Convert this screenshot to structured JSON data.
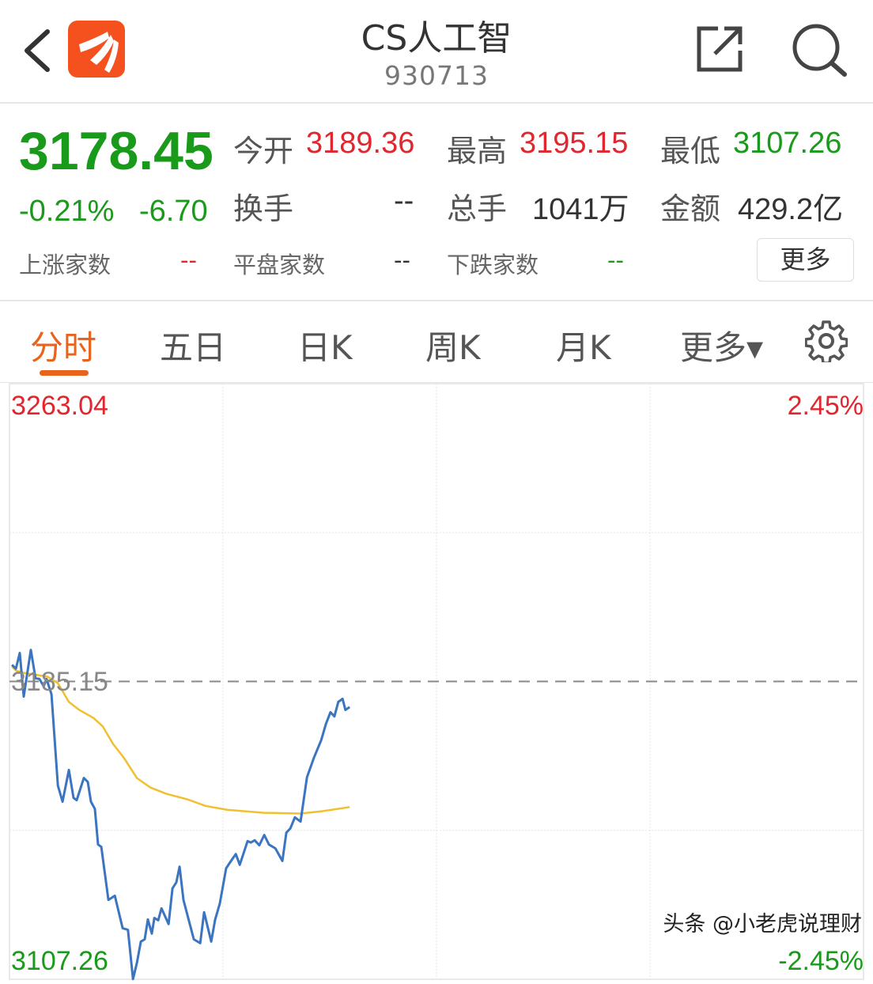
{
  "header": {
    "title": "CS人工智",
    "code": "930713",
    "back_icon": "chevron-left-icon",
    "logo": "app-logo-orange",
    "share_icon": "share-icon",
    "search_icon": "search-icon",
    "logo_color": "#f4511e"
  },
  "quote": {
    "price": "3178.45",
    "change_pct": "-0.21%",
    "change": "-6.70",
    "open_label": "今开",
    "open": "3189.36",
    "high_label": "最高",
    "high": "3195.15",
    "low_label": "最低",
    "low": "3107.26",
    "turnover_label": "换手",
    "turnover": "--",
    "volume_label": "总手",
    "volume": "1041万",
    "amount_label": "金额",
    "amount": "429.2亿",
    "up_label": "上涨家数",
    "up": "--",
    "flat_label": "平盘家数",
    "flat": "--",
    "down_label": "下跌家数",
    "down": "--",
    "more_label": "更多"
  },
  "tabs": [
    {
      "label": "分时",
      "active": true
    },
    {
      "label": "五日"
    },
    {
      "label": "日K"
    },
    {
      "label": "周K"
    },
    {
      "label": "月K"
    },
    {
      "label": "更多▾"
    }
  ],
  "settings_icon": "gear-icon",
  "colors": {
    "up": "#e0262e",
    "down": "#1a9a1a",
    "price_line": "#3b74c0",
    "avg_line": "#f0c030",
    "accent": "#e8631c"
  },
  "watermark": "头条 @小老虎说理财",
  "chart_data": {
    "type": "line",
    "y_top_label": "3263.04",
    "y_mid_label": "3185.15",
    "y_bottom_label": "3107.26",
    "pct_top_label": "2.45%",
    "pct_bottom_label": "-2.45%",
    "ylim": [
      3107.26,
      3263.04
    ],
    "prev_close": 3185.15,
    "xlim_minutes": [
      0,
      240
    ],
    "series": [
      {
        "key": "price",
        "points": [
          [
            0.7,
            3189.5
          ],
          [
            1.8,
            3188.5
          ],
          [
            2.9,
            3192.6
          ],
          [
            4,
            3181.2
          ],
          [
            6,
            3193.4
          ],
          [
            7.3,
            3186.0
          ],
          [
            8.4,
            3185.8
          ],
          [
            9.6,
            3183.9
          ],
          [
            10.4,
            3185.8
          ],
          [
            11.8,
            3181.8
          ],
          [
            13.6,
            3157.9
          ],
          [
            14.9,
            3153.7
          ],
          [
            16.7,
            3162.0
          ],
          [
            18,
            3154.7
          ],
          [
            18.9,
            3154.1
          ],
          [
            20.9,
            3159.9
          ],
          [
            22,
            3158.9
          ],
          [
            22.9,
            3153.7
          ],
          [
            24,
            3151.8
          ],
          [
            24.9,
            3142.5
          ],
          [
            25.8,
            3141.9
          ],
          [
            27.8,
            3128.0
          ],
          [
            29.6,
            3129.1
          ],
          [
            31.8,
            3120.6
          ],
          [
            33.3,
            3120.2
          ],
          [
            34.7,
            3107.3
          ],
          [
            35.8,
            3111.5
          ],
          [
            36.9,
            3117.1
          ],
          [
            38,
            3117.7
          ],
          [
            38.9,
            3122.9
          ],
          [
            40,
            3119.2
          ],
          [
            40.7,
            3123.3
          ],
          [
            41.8,
            3122.7
          ],
          [
            42.7,
            3125.8
          ],
          [
            44.7,
            3121.7
          ],
          [
            45.8,
            3131.0
          ],
          [
            46.9,
            3132.6
          ],
          [
            47.8,
            3136.7
          ],
          [
            48.9,
            3128.0
          ],
          [
            51.8,
            3117.7
          ],
          [
            53.6,
            3116.7
          ],
          [
            54.7,
            3124.8
          ],
          [
            56.7,
            3117.1
          ],
          [
            57.8,
            3122.9
          ],
          [
            59.1,
            3127.0
          ],
          [
            60.9,
            3136.3
          ],
          [
            62.4,
            3138.4
          ],
          [
            63.6,
            3140.0
          ],
          [
            64.7,
            3137.2
          ],
          [
            66.9,
            3143.4
          ],
          [
            67.8,
            3143.0
          ],
          [
            68.9,
            3143.6
          ],
          [
            70.2,
            3142.3
          ],
          [
            71.6,
            3145.0
          ],
          [
            72.9,
            3142.5
          ],
          [
            74.7,
            3141.5
          ],
          [
            76.7,
            3138.2
          ],
          [
            77.8,
            3145.6
          ],
          [
            78.9,
            3146.7
          ],
          [
            80.2,
            3149.6
          ],
          [
            81.8,
            3148.5
          ],
          [
            83.6,
            3160.1
          ],
          [
            85.6,
            3165.3
          ],
          [
            87.6,
            3169.8
          ],
          [
            88.9,
            3174.0
          ],
          [
            90.2,
            3177.1
          ],
          [
            91.3,
            3176.0
          ],
          [
            92.4,
            3179.8
          ],
          [
            93.6,
            3180.6
          ],
          [
            94.4,
            3177.7
          ],
          [
            95.6,
            3178.45
          ]
        ]
      },
      {
        "key": "average",
        "points": [
          [
            0.7,
            3189.0
          ],
          [
            1.8,
            3188.0
          ],
          [
            4,
            3187.4
          ],
          [
            10.7,
            3186.4
          ],
          [
            13.6,
            3184.7
          ],
          [
            16.7,
            3179.8
          ],
          [
            19.6,
            3177.7
          ],
          [
            23.6,
            3175.6
          ],
          [
            26.2,
            3173.4
          ],
          [
            29.1,
            3168.8
          ],
          [
            32.2,
            3165.1
          ],
          [
            35.8,
            3159.9
          ],
          [
            39.6,
            3157.4
          ],
          [
            44,
            3155.8
          ],
          [
            50,
            3154.3
          ],
          [
            55.1,
            3152.6
          ],
          [
            61.1,
            3151.6
          ],
          [
            71.3,
            3150.8
          ],
          [
            81.8,
            3150.6
          ],
          [
            87.8,
            3151.2
          ],
          [
            95.6,
            3152.3
          ]
        ]
      }
    ]
  }
}
